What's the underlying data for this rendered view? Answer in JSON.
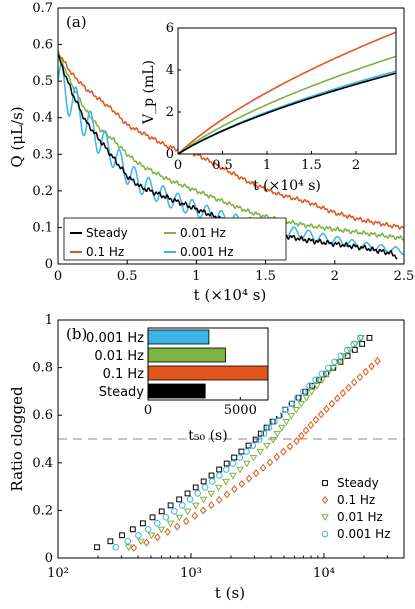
{
  "chart_data": [
    {
      "type": "line",
      "panel_label": "(a)",
      "xlabel": "t (×10⁴ s)",
      "ylabel": "Q (μL/s)",
      "xlim": [
        0,
        2.5
      ],
      "ylim": [
        0,
        0.7
      ],
      "xticks": [
        0,
        0.5,
        1,
        1.5,
        2,
        2.5
      ],
      "xtick_labels": [
        "0",
        "0.5",
        "1",
        "1.5",
        "2",
        "2.5"
      ],
      "yticks": [
        0,
        0.1,
        0.2,
        0.3,
        0.4,
        0.5,
        0.6,
        0.7
      ],
      "ytick_labels": [
        "0",
        "0.1",
        "0.2",
        "0.3",
        "0.4",
        "0.5",
        "0.6",
        "0.7"
      ],
      "legend_position": "bottom-left",
      "series": [
        {
          "name": "Steady",
          "color": "#000000",
          "x": [
            0,
            0.1,
            0.2,
            0.3,
            0.4,
            0.5,
            0.6,
            0.8,
            1.0,
            1.2,
            1.4,
            1.6,
            1.8,
            2.0,
            2.2,
            2.4,
            2.45
          ],
          "y": [
            0.57,
            0.47,
            0.39,
            0.34,
            0.29,
            0.24,
            0.21,
            0.18,
            0.15,
            0.12,
            0.1,
            0.08,
            0.065,
            0.055,
            0.045,
            0.03,
            0.02
          ]
        },
        {
          "name": "0.1 Hz",
          "color": "#e1561f",
          "x": [
            0,
            0.1,
            0.2,
            0.3,
            0.4,
            0.5,
            0.6,
            0.8,
            1.0,
            1.2,
            1.4,
            1.6,
            1.8,
            2.0,
            2.2,
            2.4,
            2.5
          ],
          "y": [
            0.58,
            0.52,
            0.48,
            0.45,
            0.42,
            0.38,
            0.36,
            0.32,
            0.3,
            0.26,
            0.22,
            0.19,
            0.17,
            0.14,
            0.12,
            0.105,
            0.1
          ]
        },
        {
          "name": "0.01 Hz",
          "color": "#7db340",
          "x": [
            0,
            0.1,
            0.2,
            0.3,
            0.4,
            0.5,
            0.6,
            0.8,
            1.0,
            1.2,
            1.4,
            1.6,
            1.8,
            2.0,
            2.2,
            2.4,
            2.5
          ],
          "y": [
            0.58,
            0.49,
            0.42,
            0.37,
            0.34,
            0.3,
            0.27,
            0.23,
            0.2,
            0.17,
            0.14,
            0.12,
            0.105,
            0.095,
            0.085,
            0.075,
            0.07
          ]
        },
        {
          "name": "0.001 Hz",
          "color": "#3cb4e5",
          "x": [
            0,
            0.1,
            0.2,
            0.3,
            0.4,
            0.5,
            0.6,
            0.8,
            1.0,
            1.2,
            1.4,
            1.6,
            1.8,
            2.0,
            2.2,
            2.4,
            2.5
          ],
          "y": [
            0.5,
            0.45,
            0.39,
            0.34,
            0.3,
            0.25,
            0.22,
            0.18,
            0.15,
            0.125,
            0.11,
            0.095,
            0.08,
            0.065,
            0.05,
            0.04,
            0.035
          ],
          "oscillation_amplitude": 0.06
        }
      ]
    },
    {
      "type": "line",
      "inset_of": "(a)",
      "xlabel": "t (×10⁴ s)",
      "ylabel": "V_p (mL)",
      "xlim": [
        0,
        2.45
      ],
      "ylim": [
        0,
        6
      ],
      "xticks": [
        0,
        0.5,
        1,
        1.5,
        2
      ],
      "xtick_labels": [
        "0",
        "0.5",
        "1",
        "1.5",
        "2"
      ],
      "yticks": [
        0,
        2,
        4,
        6
      ],
      "ytick_labels": [
        "0",
        "2",
        "4",
        "6"
      ],
      "series": [
        {
          "name": "Steady",
          "color": "#000000",
          "final_value": 3.85
        },
        {
          "name": "0.1 Hz",
          "color": "#e1561f",
          "final_value": 5.8
        },
        {
          "name": "0.01 Hz",
          "color": "#7db340",
          "final_value": 4.65
        },
        {
          "name": "0.001 Hz",
          "color": "#3cb4e5",
          "final_value": 3.95
        }
      ]
    },
    {
      "type": "scatter",
      "panel_label": "(b)",
      "xlabel": "t (s)",
      "ylabel": "Ratio clogged",
      "x_scale": "log",
      "xlim": [
        100,
        40000
      ],
      "ylim": [
        0,
        1
      ],
      "xticks": [
        100,
        1000,
        10000
      ],
      "xtick_labels": [
        "10²",
        "10³",
        "10⁴"
      ],
      "yticks": [
        0,
        0.2,
        0.4,
        0.6,
        0.8,
        1
      ],
      "ytick_labels": [
        "0",
        "0.2",
        "0.4",
        "0.6",
        "0.8",
        "1"
      ],
      "reference_line_y": 0.5,
      "legend_position": "bottom-right",
      "series": [
        {
          "name": "Steady",
          "color": "#000000",
          "marker": "square",
          "t_start": 140,
          "t_end": 25000
        },
        {
          "name": "0.1 Hz",
          "color": "#e1561f",
          "marker": "diamond",
          "t_start": 270,
          "t_end": 28000
        },
        {
          "name": "0.01 Hz",
          "color": "#7db340",
          "marker": "triangle-down",
          "t_start": 250,
          "t_end": 21000
        },
        {
          "name": "0.001 Hz",
          "color": "#3cb4e5",
          "marker": "circle",
          "t_start": 200,
          "t_end": 21000
        }
      ]
    },
    {
      "type": "bar",
      "orientation": "horizontal",
      "inset_of": "(b)",
      "xlabel": "t₅₀ (s)",
      "xlim": [
        0,
        6500
      ],
      "xticks": [
        0,
        5000
      ],
      "xtick_labels": [
        "0",
        "5000"
      ],
      "categories": [
        "0.001 Hz",
        "0.01 Hz",
        "0.1 Hz",
        "Steady"
      ],
      "values": [
        3300,
        4200,
        6500,
        3100
      ],
      "colors": [
        "#3cb4e5",
        "#7db340",
        "#e1561f",
        "#000000"
      ]
    }
  ]
}
